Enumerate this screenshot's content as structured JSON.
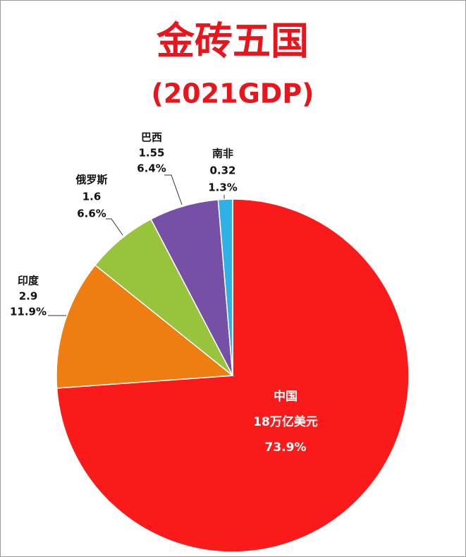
{
  "chart_data": {
    "type": "pie",
    "title": "金砖五国",
    "subtitle": "(2021GDP)",
    "categories": [
      "中国",
      "印度",
      "俄罗斯",
      "巴西",
      "南非"
    ],
    "values": [
      18,
      2.9,
      1.6,
      1.55,
      0.32
    ],
    "value_labels": [
      "18万亿美元",
      "2.9",
      "1.6",
      "1.55",
      "0.32"
    ],
    "percentages": [
      73.9,
      11.9,
      6.6,
      6.4,
      1.3
    ],
    "percentage_labels": [
      "73.9%",
      "11.9%",
      "6.6%",
      "6.4%",
      "1.3%"
    ],
    "colors": [
      "#fb1a1a",
      "#ee7d12",
      "#97c43c",
      "#7650a6",
      "#2eb2e6"
    ]
  }
}
